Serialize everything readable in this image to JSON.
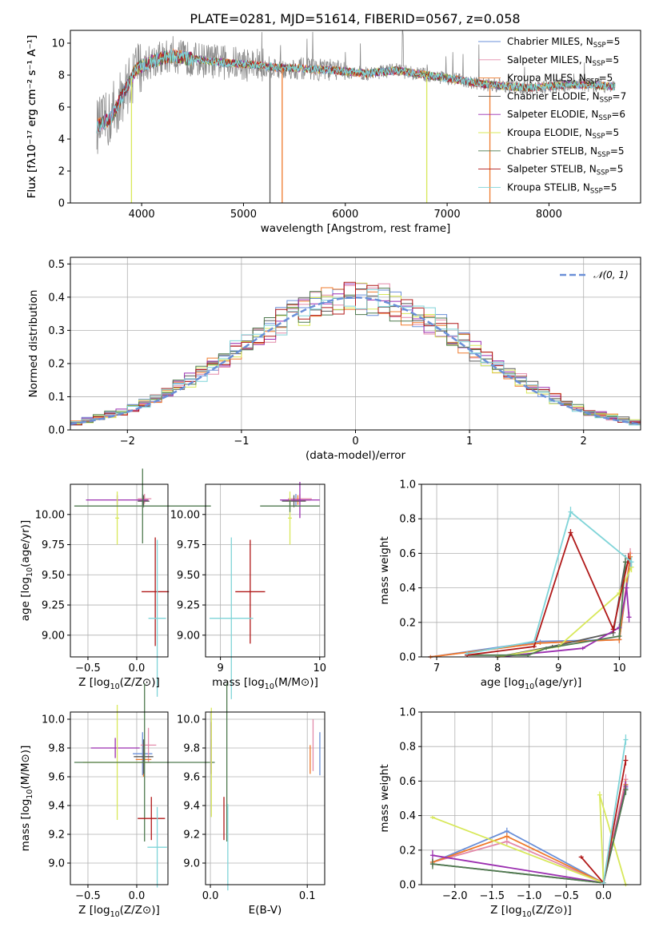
{
  "title": "PLATE=0281, MJD=51614, FIBERID=0567, z=0.058",
  "colors": {
    "chabrier_miles": "#6a8fd8",
    "salpeter_miles": "#e38aaa",
    "kroupa_miles": "#ef7b2e",
    "chabrier_elodie": "#5a5a5a",
    "salpeter_elodie": "#9b2fb0",
    "kroupa_elodie": "#d8e85a",
    "chabrier_stelib": "#4f7a4f",
    "salpeter_stelib": "#b01818",
    "kroupa_stelib": "#7fd4d8",
    "data": "#8a8a8a",
    "normal": "#6a8fd8"
  },
  "legend_spectrum": [
    {
      "id": "chabrier_miles",
      "base": "Chabrier MILES, N",
      "sub": "SSP",
      "tail": "=5"
    },
    {
      "id": "salpeter_miles",
      "base": "Salpeter MILES, N",
      "sub": "SSP",
      "tail": "=5"
    },
    {
      "id": "kroupa_miles",
      "base": "Kroupa MILES, N",
      "sub": "SSP",
      "tail": "=5"
    },
    {
      "id": "chabrier_elodie",
      "base": "Chabrier ELODIE, N",
      "sub": "SSP",
      "tail": "=7"
    },
    {
      "id": "salpeter_elodie",
      "base": "Salpeter ELODIE, N",
      "sub": "SSP",
      "tail": "=6"
    },
    {
      "id": "kroupa_elodie",
      "base": "Kroupa ELODIE, N",
      "sub": "SSP",
      "tail": "=5"
    },
    {
      "id": "chabrier_stelib",
      "base": "Chabrier STELIB, N",
      "sub": "SSP",
      "tail": "=5"
    },
    {
      "id": "salpeter_stelib",
      "base": "Salpeter STELIB, N",
      "sub": "SSP",
      "tail": "=5"
    },
    {
      "id": "kroupa_stelib",
      "base": "Kroupa STELIB, N",
      "sub": "SSP",
      "tail": "=5"
    }
  ],
  "legend_hist": "𝒩(0, 1)",
  "chart_data": [
    {
      "type": "line",
      "panel": "spectrum",
      "xlabel": "wavelength [Angstrom, rest frame]",
      "ylabel": "Flux [fλ10⁻¹⁷ erg cm⁻² s⁻¹ A⁻¹]",
      "xlim": [
        3300,
        8900
      ],
      "ylim": [
        0,
        10.8
      ],
      "xticks": [
        "4000",
        "5000",
        "6000",
        "7000",
        "8000"
      ],
      "xtick_values": [
        4000,
        5000,
        6000,
        7000,
        8000
      ],
      "yticks": [
        "0",
        "2",
        "4",
        "6",
        "8",
        "10"
      ],
      "ytick_values": [
        0,
        2,
        4,
        6,
        8,
        10
      ],
      "model_continuum": {
        "x": [
          3560,
          3700,
          3800,
          3950,
          4100,
          4300,
          4500,
          4800,
          5000,
          5300,
          5600,
          5900,
          6200,
          6500,
          6800,
          7000,
          7200,
          7400,
          7600,
          7800,
          8000,
          8200,
          8400,
          8600
        ],
        "y": [
          4.8,
          5.3,
          6.6,
          8.4,
          8.9,
          9.2,
          9.0,
          8.8,
          8.7,
          8.5,
          8.4,
          8.3,
          8.1,
          8.3,
          8.0,
          7.8,
          7.6,
          7.4,
          7.3,
          7.2,
          7.3,
          7.4,
          7.4,
          7.3
        ]
      },
      "masked_drops": [
        {
          "id": "kroupa_elodie",
          "x": 3900
        },
        {
          "id": "chabrier_elodie",
          "x": 5260
        },
        {
          "id": "kroupa_miles",
          "x": 5380
        },
        {
          "id": "kroupa_elodie",
          "x": 6800
        },
        {
          "id": "kroupa_miles",
          "x": 7420
        }
      ]
    },
    {
      "type": "histogram",
      "panel": "residuals",
      "xlabel": "(data-model)/error",
      "ylabel": "Normed distribution",
      "xlim": [
        -2.5,
        2.5
      ],
      "ylim": [
        0,
        0.52
      ],
      "xticks": [
        "−2",
        "−1",
        "0",
        "1",
        "2"
      ],
      "xtick_values": [
        -2,
        -1,
        0,
        1,
        2
      ],
      "yticks": [
        "0.0",
        "0.1",
        "0.2",
        "0.3",
        "0.4",
        "0.5"
      ],
      "ytick_values": [
        0,
        0.1,
        0.2,
        0.3,
        0.4,
        0.5
      ],
      "bin_width": 0.1
    },
    {
      "type": "scatter",
      "panel": "age-vs-Z",
      "xlabel_base": "Z [log",
      "xlabel_sub": "10",
      "xlabel_tail": "(Z/Z⊙)]",
      "ylabel_base": "age  [log",
      "ylabel_sub": "10",
      "ylabel_tail": "(age/yr)]",
      "xlim": [
        -0.68,
        0.32
      ],
      "ylim": [
        8.82,
        10.25
      ],
      "xticks": [
        "−0.5",
        "0.0"
      ],
      "xtick_values": [
        -0.5,
        0.0
      ],
      "yticks": [
        "9.00",
        "9.25",
        "9.50",
        "9.75",
        "10.00"
      ],
      "ytick_values": [
        9.0,
        9.25,
        9.5,
        9.75,
        10.0
      ],
      "points": [
        {
          "id": "chabrier_miles",
          "x": 0.06,
          "y": 10.12,
          "xerr": 0.04,
          "yerr": 0.05
        },
        {
          "id": "salpeter_miles",
          "x": 0.08,
          "y": 10.13,
          "xerr": 0.07,
          "yerr": 0.04
        },
        {
          "id": "kroupa_miles",
          "x": 0.07,
          "y": 10.12,
          "xerr": 0.05,
          "yerr": 0.04
        },
        {
          "id": "chabrier_elodie",
          "x": 0.07,
          "y": 10.11,
          "xerr": 0.06,
          "yerr": 0.05
        },
        {
          "id": "salpeter_elodie",
          "x": -0.2,
          "y": 10.12,
          "xerr": 0.32,
          "yerr": 0.04
        },
        {
          "id": "kroupa_elodie",
          "x": -0.2,
          "y": 9.97,
          "xerr": 0.02,
          "yerr": 0.22
        },
        {
          "id": "chabrier_stelib",
          "x": 0.06,
          "y": 10.07,
          "xerr": 0.7,
          "yerr": 0.31
        },
        {
          "id": "salpeter_stelib",
          "x": 0.19,
          "y": 9.36,
          "xerr": 0.14,
          "yerr": 0.45
        },
        {
          "id": "kroupa_stelib",
          "x": 0.21,
          "y": 9.14,
          "xerr": 0.09,
          "yerr": 0.65
        }
      ]
    },
    {
      "type": "scatter",
      "panel": "age-vs-mass",
      "xlabel_base": "mass [log",
      "xlabel_sub": "10",
      "xlabel_tail": "(M/M⊙)]",
      "xlim": [
        8.85,
        10.05
      ],
      "ylim": [
        8.82,
        10.25
      ],
      "xticks": [
        "9",
        "10"
      ],
      "xtick_values": [
        9,
        10
      ],
      "yticks": [
        "9.00",
        "9.25",
        "9.50",
        "9.75",
        "10.00"
      ],
      "ytick_values": [
        9.0,
        9.25,
        9.5,
        9.75,
        10.0
      ],
      "points": [
        {
          "id": "chabrier_miles",
          "x": 9.76,
          "y": 10.12,
          "xerr": 0.15,
          "yerr": 0.05
        },
        {
          "id": "salpeter_miles",
          "x": 9.8,
          "y": 10.13,
          "xerr": 0.12,
          "yerr": 0.04
        },
        {
          "id": "kroupa_miles",
          "x": 9.78,
          "y": 10.12,
          "xerr": 0.12,
          "yerr": 0.04
        },
        {
          "id": "chabrier_elodie",
          "x": 9.74,
          "y": 10.11,
          "xerr": 0.12,
          "yerr": 0.05
        },
        {
          "id": "salpeter_elodie",
          "x": 9.8,
          "y": 10.12,
          "xerr": 0.2,
          "yerr": 0.15
        },
        {
          "id": "kroupa_elodie",
          "x": 9.7,
          "y": 9.97,
          "xerr": 0.02,
          "yerr": 0.22
        },
        {
          "id": "chabrier_stelib",
          "x": 9.7,
          "y": 10.07,
          "xerr": 0.3,
          "yerr": 0.05
        },
        {
          "id": "salpeter_stelib",
          "x": 9.3,
          "y": 9.36,
          "xerr": 0.15,
          "yerr": 0.43
        },
        {
          "id": "kroupa_stelib",
          "x": 9.11,
          "y": 9.14,
          "xerr": 0.22,
          "yerr": 0.67
        }
      ]
    },
    {
      "type": "line",
      "panel": "massweight-vs-age",
      "xlabel_base": "age  [log",
      "xlabel_sub": "10",
      "xlabel_tail": "(age/yr)]",
      "ylabel": "mass weight",
      "xlim": [
        6.75,
        10.35
      ],
      "ylim": [
        0,
        1.0
      ],
      "xticks": [
        "7",
        "8",
        "9",
        "10"
      ],
      "xtick_values": [
        7,
        8,
        9,
        10
      ],
      "yticks": [
        "0.0",
        "0.2",
        "0.4",
        "0.6",
        "0.8",
        "1.0"
      ],
      "ytick_values": [
        0,
        0.2,
        0.4,
        0.6,
        0.8,
        1.0
      ],
      "series": [
        {
          "id": "chabrier_miles",
          "x": [
            6.9,
            8.7,
            10.0,
            10.18
          ],
          "y": [
            0.0,
            0.09,
            0.1,
            0.55
          ],
          "yerr": [
            0.01,
            0.01,
            0.02,
            0.03
          ]
        },
        {
          "id": "salpeter_miles",
          "x": [
            6.9,
            8.7,
            10.0,
            10.18
          ],
          "y": [
            0.0,
            0.08,
            0.1,
            0.6
          ],
          "yerr": [
            0.01,
            0.01,
            0.02,
            0.03
          ]
        },
        {
          "id": "kroupa_miles",
          "x": [
            6.9,
            8.7,
            10.0,
            10.18
          ],
          "y": [
            0.0,
            0.08,
            0.1,
            0.58
          ],
          "yerr": [
            0.01,
            0.01,
            0.02,
            0.03
          ]
        },
        {
          "id": "chabrier_elodie",
          "x": [
            8.0,
            8.9,
            9.9,
            10.1
          ],
          "y": [
            0.0,
            0.06,
            0.14,
            0.55
          ],
          "yerr": [
            0.01,
            0.01,
            0.02,
            0.04
          ]
        },
        {
          "id": "salpeter_elodie",
          "x": [
            8.0,
            9.4,
            10.0,
            10.12,
            10.16
          ],
          "y": [
            0.0,
            0.05,
            0.17,
            0.4,
            0.23
          ],
          "yerr": [
            0.01,
            0.01,
            0.02,
            0.03,
            0.03
          ]
        },
        {
          "id": "kroupa_elodie",
          "x": [
            8.0,
            9.0,
            10.0,
            10.2
          ],
          "y": [
            0.0,
            0.06,
            0.37,
            0.52
          ],
          "yerr": [
            0.01,
            0.01,
            0.02,
            0.03
          ]
        },
        {
          "id": "chabrier_stelib",
          "x": [
            7.5,
            8.5,
            8.8,
            10.0,
            10.1
          ],
          "y": [
            0.01,
            0.01,
            0.05,
            0.12,
            0.55
          ],
          "yerr": [
            0.01,
            0.01,
            0.01,
            0.02,
            0.03
          ]
        },
        {
          "id": "salpeter_stelib",
          "x": [
            7.5,
            8.6,
            9.2,
            9.9,
            10.15
          ],
          "y": [
            0.01,
            0.06,
            0.72,
            0.16,
            0.57
          ],
          "yerr": [
            0.01,
            0.01,
            0.02,
            0.02,
            0.03
          ]
        },
        {
          "id": "kroupa_stelib",
          "x": [
            7.5,
            8.6,
            9.2,
            10.2
          ],
          "y": [
            0.02,
            0.09,
            0.84,
            0.55
          ],
          "yerr": [
            0.01,
            0.01,
            0.03,
            0.03
          ]
        }
      ]
    },
    {
      "type": "scatter",
      "panel": "mass-vs-Z",
      "xlabel_base": "Z [log",
      "xlabel_sub": "10",
      "xlabel_tail": "(Z/Z⊙)]",
      "ylabel_base": "mass [log",
      "ylabel_sub": "10",
      "ylabel_tail": "(M/M⊙)]",
      "xlim": [
        -0.68,
        0.32
      ],
      "ylim": [
        8.85,
        10.05
      ],
      "xticks": [
        "−0.5",
        "0.0"
      ],
      "xtick_values": [
        -0.5,
        0.0
      ],
      "yticks": [
        "9.0",
        "9.2",
        "9.4",
        "9.6",
        "9.8",
        "10.0"
      ],
      "ytick_values": [
        9.0,
        9.2,
        9.4,
        9.6,
        9.8,
        10.0
      ],
      "points": [
        {
          "id": "chabrier_miles",
          "x": 0.06,
          "y": 9.76,
          "xerr": 0.1,
          "yerr": 0.15
        },
        {
          "id": "salpeter_miles",
          "x": 0.12,
          "y": 9.82,
          "xerr": 0.08,
          "yerr": 0.12
        },
        {
          "id": "kroupa_miles",
          "x": 0.07,
          "y": 9.72,
          "xerr": 0.08,
          "yerr": 0.12
        },
        {
          "id": "chabrier_elodie",
          "x": 0.07,
          "y": 9.74,
          "xerr": 0.1,
          "yerr": 0.12
        },
        {
          "id": "salpeter_elodie",
          "x": -0.22,
          "y": 9.8,
          "xerr": 0.25,
          "yerr": 0.07
        },
        {
          "id": "kroupa_elodie",
          "x": -0.2,
          "y": 9.7,
          "xerr": 0.35,
          "yerr": 0.4
        },
        {
          "id": "chabrier_stelib",
          "x": 0.08,
          "y": 9.7,
          "xerr": 0.72,
          "yerr": 0.55
        },
        {
          "id": "salpeter_stelib",
          "x": 0.15,
          "y": 9.31,
          "xerr": 0.14,
          "yerr": 0.15
        },
        {
          "id": "kroupa_stelib",
          "x": 0.21,
          "y": 9.11,
          "xerr": 0.1,
          "yerr": 0.28
        }
      ]
    },
    {
      "type": "scatter",
      "panel": "mass-vs-EBV",
      "xlabel": "E(B-V)",
      "xlim": [
        -0.005,
        0.118
      ],
      "ylim": [
        8.85,
        10.05
      ],
      "xticks": [
        "0.0",
        "0.1"
      ],
      "xtick_values": [
        0.0,
        0.1
      ],
      "yticks": [
        "9.0",
        "9.2",
        "9.4",
        "9.6",
        "9.8",
        "10.0"
      ],
      "ytick_values": [
        9.0,
        9.2,
        9.4,
        9.6,
        9.8,
        10.0
      ],
      "points": [
        {
          "id": "chabrier_miles",
          "x": 0.113,
          "y": 9.76,
          "yerr": 0.15
        },
        {
          "id": "salpeter_miles",
          "x": 0.106,
          "y": 9.82,
          "yerr": 0.18
        },
        {
          "id": "kroupa_miles",
          "x": 0.103,
          "y": 9.72,
          "yerr": 0.1
        },
        {
          "id": "chabrier_elodie",
          "x": 0.001,
          "y": 9.74,
          "yerr": 0.12
        },
        {
          "id": "salpeter_elodie",
          "x": 0.001,
          "y": 9.8,
          "yerr": 0.18
        },
        {
          "id": "kroupa_elodie",
          "x": 0.001,
          "y": 9.7,
          "yerr": 0.38
        },
        {
          "id": "chabrier_stelib",
          "x": 0.017,
          "y": 9.7,
          "yerr": 0.55
        },
        {
          "id": "salpeter_stelib",
          "x": 0.014,
          "y": 9.31,
          "yerr": 0.15
        },
        {
          "id": "kroupa_stelib",
          "x": 0.018,
          "y": 9.11,
          "yerr": 0.3
        }
      ]
    },
    {
      "type": "line",
      "panel": "massweight-vs-Z",
      "xlabel_base": "Z [log",
      "xlabel_sub": "10",
      "xlabel_tail": "(Z/Z⊙)]",
      "ylabel": "mass weight",
      "xlim": [
        -2.45,
        0.5
      ],
      "ylim": [
        0,
        1.0
      ],
      "xticks": [
        "−2.0",
        "−1.5",
        "−1.0",
        "−0.5",
        "0.0"
      ],
      "xtick_values": [
        -2.0,
        -1.5,
        -1.0,
        -0.5,
        0.0
      ],
      "yticks": [
        "0.0",
        "0.2",
        "0.4",
        "0.6",
        "0.8",
        "1.0"
      ],
      "ytick_values": [
        0,
        0.2,
        0.4,
        0.6,
        0.8,
        1.0
      ],
      "series": [
        {
          "id": "chabrier_miles",
          "x": [
            -2.3,
            -1.3,
            0.0,
            0.3
          ],
          "y": [
            0.13,
            0.31,
            0.01,
            0.56
          ],
          "yerr": [
            0.02,
            0.02,
            0.01,
            0.03
          ]
        },
        {
          "id": "salpeter_miles",
          "x": [
            -2.3,
            -1.3,
            0.0,
            0.3
          ],
          "y": [
            0.13,
            0.25,
            0.01,
            0.61
          ],
          "yerr": [
            0.02,
            0.02,
            0.01,
            0.03
          ]
        },
        {
          "id": "kroupa_miles",
          "x": [
            -2.3,
            -1.3,
            0.0,
            0.3
          ],
          "y": [
            0.13,
            0.28,
            0.01,
            0.58
          ],
          "yerr": [
            0.02,
            0.02,
            0.01,
            0.03
          ]
        },
        {
          "id": "chabrier_elodie",
          "x": [
            -2.3,
            0.0,
            0.3
          ],
          "y": [
            0.12,
            0.01,
            0.55
          ],
          "yerr": [
            0.02,
            0.01,
            0.03
          ]
        },
        {
          "id": "salpeter_elodie",
          "x": [
            -2.3,
            0.0,
            0.3
          ],
          "y": [
            0.17,
            0.01,
            0.57
          ],
          "yerr": [
            0.03,
            0.01,
            0.03
          ]
        },
        {
          "id": "kroupa_elodie",
          "x": [
            -2.3,
            0.0,
            -0.05,
            0.3
          ],
          "y": [
            0.39,
            0.01,
            0.52,
            0.0
          ],
          "yerr": [
            0.01,
            0.01,
            0.02,
            0.01
          ]
        },
        {
          "id": "chabrier_stelib",
          "x": [
            -2.3,
            0.0,
            0.3
          ],
          "y": [
            0.12,
            0.01,
            0.55
          ],
          "yerr": [
            0.03,
            0.01,
            0.03
          ]
        },
        {
          "id": "salpeter_stelib",
          "x": [
            -0.3,
            0.0,
            0.3
          ],
          "y": [
            0.16,
            0.01,
            0.72
          ],
          "yerr": [
            0.01,
            0.01,
            0.03
          ]
        },
        {
          "id": "kroupa_stelib",
          "x": [
            0.0,
            0.3
          ],
          "y": [
            0.01,
            0.84
          ],
          "yerr": [
            0.01,
            0.03
          ]
        }
      ]
    }
  ]
}
